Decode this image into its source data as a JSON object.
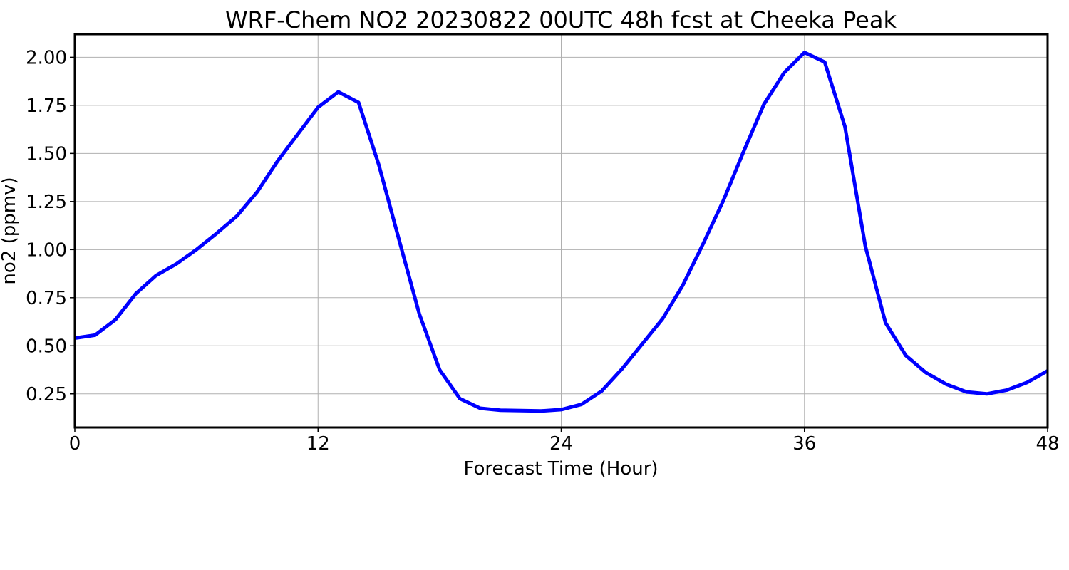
{
  "chart_data": {
    "type": "line",
    "title": "WRF-Chem NO2  20230822 00UTC 48h fcst at Cheeka Peak",
    "xlabel": "Forecast Time (Hour)",
    "ylabel": "no2  (ppmv)",
    "xlim": [
      0,
      48
    ],
    "ylim": [
      0.075,
      2.12
    ],
    "xticks": [
      0,
      12,
      24,
      36,
      48
    ],
    "yticks": [
      0.25,
      0.5,
      0.75,
      1.0,
      1.25,
      1.5,
      1.75,
      2.0
    ],
    "ytick_labels": [
      "0.25",
      "0.50",
      "0.75",
      "1.00",
      "1.25",
      "1.50",
      "1.75",
      "2.00"
    ],
    "grid": true,
    "series": [
      {
        "color": "#0000ff",
        "x": [
          0,
          1,
          2,
          3,
          4,
          5,
          6,
          7,
          8,
          9,
          10,
          11,
          12,
          13,
          14,
          15,
          16,
          17,
          18,
          19,
          20,
          21,
          22,
          23,
          24,
          25,
          26,
          27,
          28,
          29,
          30,
          31,
          32,
          33,
          34,
          35,
          36,
          37,
          38,
          39,
          40,
          41,
          42,
          43,
          44,
          45,
          46,
          47,
          48
        ],
        "y": [
          0.54,
          0.555,
          0.635,
          0.77,
          0.865,
          0.925,
          1.0,
          1.085,
          1.175,
          1.3,
          1.46,
          1.6,
          1.74,
          1.82,
          1.765,
          1.44,
          1.05,
          0.665,
          0.375,
          0.225,
          0.175,
          0.165,
          0.163,
          0.161,
          0.168,
          0.195,
          0.265,
          0.38,
          0.51,
          0.64,
          0.815,
          1.03,
          1.255,
          1.51,
          1.755,
          1.92,
          2.025,
          1.975,
          1.64,
          1.02,
          0.62,
          0.45,
          0.36,
          0.3,
          0.26,
          0.25,
          0.27,
          0.31,
          0.37
        ]
      }
    ]
  }
}
